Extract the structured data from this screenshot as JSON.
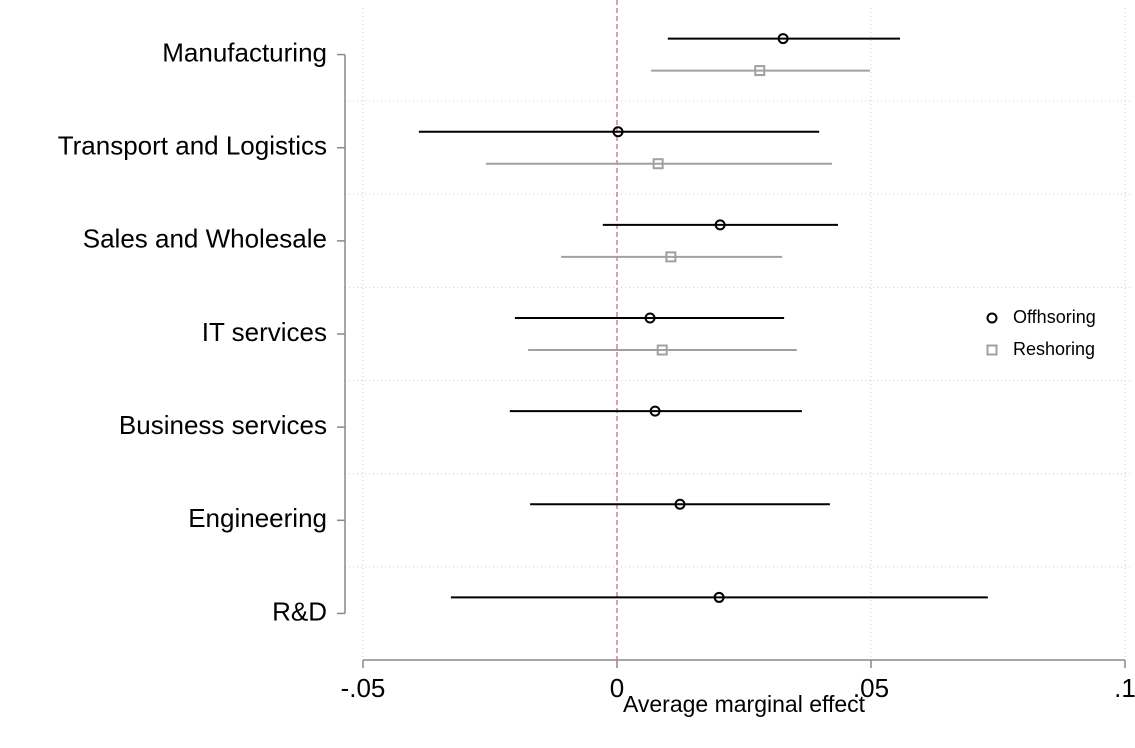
{
  "chart_data": {
    "type": "coefplot",
    "orientation": "horizontal",
    "x_label": "Average marginal effect",
    "categories": [
      "Manufacturing",
      "Transport and Logistics",
      "Sales and Wholesale",
      "IT services",
      "Business services",
      "Engineering",
      "R&D"
    ],
    "series": [
      {
        "name": "Offhsoring",
        "color": "#000000",
        "marker": "circle",
        "values": [
          0.0327,
          0.0002,
          0.0203,
          0.0065,
          0.0075,
          0.0124,
          0.0201
        ],
        "lower": [
          0.01,
          -0.039,
          -0.0028,
          -0.0201,
          -0.0211,
          -0.0171,
          -0.0327
        ],
        "upper": [
          0.0557,
          0.0398,
          0.0435,
          0.0329,
          0.0364,
          0.0419,
          0.073
        ]
      },
      {
        "name": "Reshoring",
        "color": "#a0a0a0",
        "marker": "square",
        "values": [
          0.0281,
          0.0081,
          0.0106,
          0.0089,
          null,
          null,
          null
        ],
        "lower": [
          0.0067,
          -0.0258,
          -0.011,
          -0.0175,
          null,
          null,
          null
        ],
        "upper": [
          0.0498,
          0.0423,
          0.0325,
          0.0354,
          null,
          null,
          null
        ]
      }
    ],
    "xlim": [
      -0.05,
      0.1
    ],
    "xticks": [
      {
        "value": -0.05,
        "label": "-.05"
      },
      0,
      {
        "value": 0.05,
        "label": ".05"
      },
      {
        "value": 0.1,
        "label": ".1"
      }
    ],
    "xline": 0,
    "xline_color": "#d97aa0",
    "grid": true,
    "legend": "right"
  }
}
